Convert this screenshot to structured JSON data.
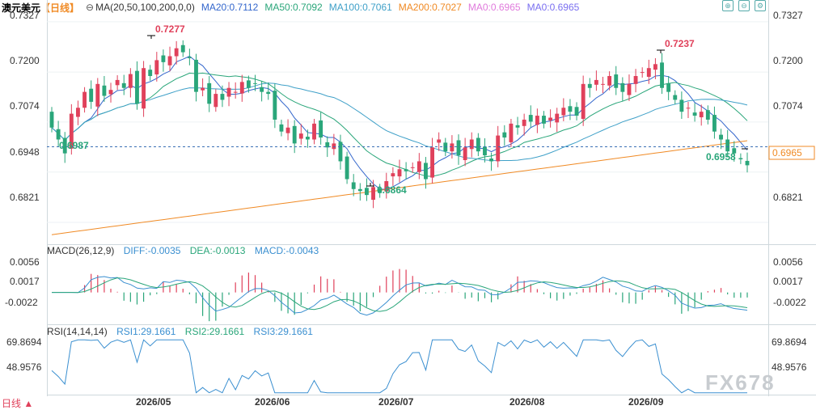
{
  "header": {
    "symbol": "澳元美元",
    "period_tag": "【日线】",
    "ma_title": "MA(20,50,100,200,0,0)",
    "ma_values": [
      {
        "label": "MA20:0.7112",
        "color": "#3366cc"
      },
      {
        "label": "MA50:0.7092",
        "color": "#2aa67a"
      },
      {
        "label": "MA100:0.7061",
        "color": "#3fa0c8"
      },
      {
        "label": "MA200:0.7027",
        "color": "#f08a24"
      },
      {
        "label": "MA0:0.6965",
        "color": "#e07adc"
      },
      {
        "label": "MA0:0.6965",
        "color": "#7a6ff0"
      }
    ]
  },
  "toolbar": {
    "icons": [
      "add-icon",
      "remove-icon",
      "settings-icon"
    ],
    "glyphs": [
      "⊕",
      "⊖",
      "⚙"
    ]
  },
  "main_axis": {
    "ticks": [
      "0.7327",
      "0.7200",
      "0.7074",
      "0.6948",
      "0.6821"
    ],
    "current_price": "0.6965"
  },
  "annotations": {
    "high1": "0.7277",
    "high2": "0.7237",
    "low1": "0.6987",
    "low2": "0.6864",
    "low3": "0.6958"
  },
  "macd": {
    "title": "MACD(26,12,9)",
    "diff": "DIFF:-0.0035",
    "dea": "DEA:-0.0013",
    "macd": "MACD:-0.0043",
    "ticks": [
      "0.0056",
      "0.0017",
      "-0.0022"
    ]
  },
  "rsi": {
    "title": "RSI(14,14,14)",
    "rsi1": "RSI1:29.1661",
    "rsi2": "RSI2:29.1661",
    "rsi3": "RSI3:29.1661",
    "ticks": [
      "69.8694",
      "48.9576"
    ]
  },
  "x_labels": [
    "2026/05",
    "2026/06",
    "2026/07",
    "2026/08",
    "2026/09"
  ],
  "period_button": "日线 ▲",
  "watermark": "FX678",
  "colors": {
    "up": "#e0415b",
    "down": "#2aa67a",
    "ma20": "#3366cc",
    "ma50": "#2aa67a",
    "ma100": "#3fa0c8",
    "ma200": "#f08a24",
    "macd_diff": "#3a8fd0",
    "macd_dea": "#2aa67a",
    "rsi": "#3a8fd0"
  },
  "chart_data": [
    {
      "type": "candlestick",
      "title": "澳元美元 日线",
      "x": [
        "2026/05",
        "2026/06",
        "2026/07",
        "2026/08",
        "2026/09"
      ],
      "y_ticks": [
        0.6821,
        0.6948,
        0.7074,
        0.72,
        0.7327
      ],
      "ylim": [
        0.677,
        0.7345
      ],
      "closes": [
        0.706,
        0.703,
        0.6995,
        0.7095,
        0.711,
        0.715,
        0.7125,
        0.717,
        0.714,
        0.7155,
        0.718,
        0.716,
        0.7195,
        0.712,
        0.721,
        0.719,
        0.723,
        0.7225,
        0.724,
        0.726,
        0.725,
        0.7235,
        0.715,
        0.716,
        0.712,
        0.7145,
        0.713,
        0.716,
        0.715,
        0.7175,
        0.716,
        0.717,
        0.715,
        0.7145,
        0.708,
        0.705,
        0.706,
        0.702,
        0.7045,
        0.703,
        0.707,
        0.7035,
        0.701,
        0.702,
        0.6975,
        0.693,
        0.6905,
        0.69,
        0.689,
        0.691,
        0.6895,
        0.6925,
        0.6945,
        0.6955,
        0.695,
        0.696,
        0.6975,
        0.693,
        0.701,
        0.703,
        0.7,
        0.702,
        0.699,
        0.701,
        0.703,
        0.7,
        0.699,
        0.6975,
        0.704,
        0.7035,
        0.707,
        0.706,
        0.708,
        0.7075,
        0.709,
        0.707,
        0.7085,
        0.7095,
        0.711,
        0.71,
        0.709,
        0.717,
        0.716,
        0.718,
        0.717,
        0.719,
        0.716,
        0.715,
        0.717,
        0.719,
        0.72,
        0.721,
        0.722,
        0.716,
        0.715,
        0.713,
        0.71,
        0.711,
        0.709,
        0.71,
        0.708,
        0.705,
        0.703,
        0.7,
        0.6995,
        0.698,
        0.6965
      ],
      "ma_series": [
        {
          "name": "MA20",
          "value": 0.7112
        },
        {
          "name": "MA50",
          "value": 0.7092
        },
        {
          "name": "MA100",
          "value": 0.7061
        },
        {
          "name": "MA200",
          "value": 0.7027
        }
      ],
      "annotations": [
        {
          "label": "0.7277",
          "type": "high"
        },
        {
          "label": "0.7237",
          "type": "high"
        },
        {
          "label": "0.6987",
          "type": "low"
        },
        {
          "label": "0.6864",
          "type": "low"
        },
        {
          "label": "0.6958",
          "type": "low"
        }
      ]
    },
    {
      "type": "bar",
      "title": "MACD(26,12,9)",
      "y_ticks": [
        0.0056,
        0.0017,
        -0.0022
      ],
      "ylim": [
        -0.0045,
        0.0065
      ],
      "series": [
        {
          "name": "DIFF",
          "last": -0.0035
        },
        {
          "name": "DEA",
          "last": -0.0013
        },
        {
          "name": "MACD",
          "last": -0.0043
        }
      ]
    },
    {
      "type": "line",
      "title": "RSI(14,14,14)",
      "y_ticks": [
        69.8694,
        48.9576
      ],
      "series": [
        {
          "name": "RSI1",
          "last": 29.1661
        },
        {
          "name": "RSI2",
          "last": 29.1661
        },
        {
          "name": "RSI3",
          "last": 29.1661
        }
      ]
    }
  ]
}
